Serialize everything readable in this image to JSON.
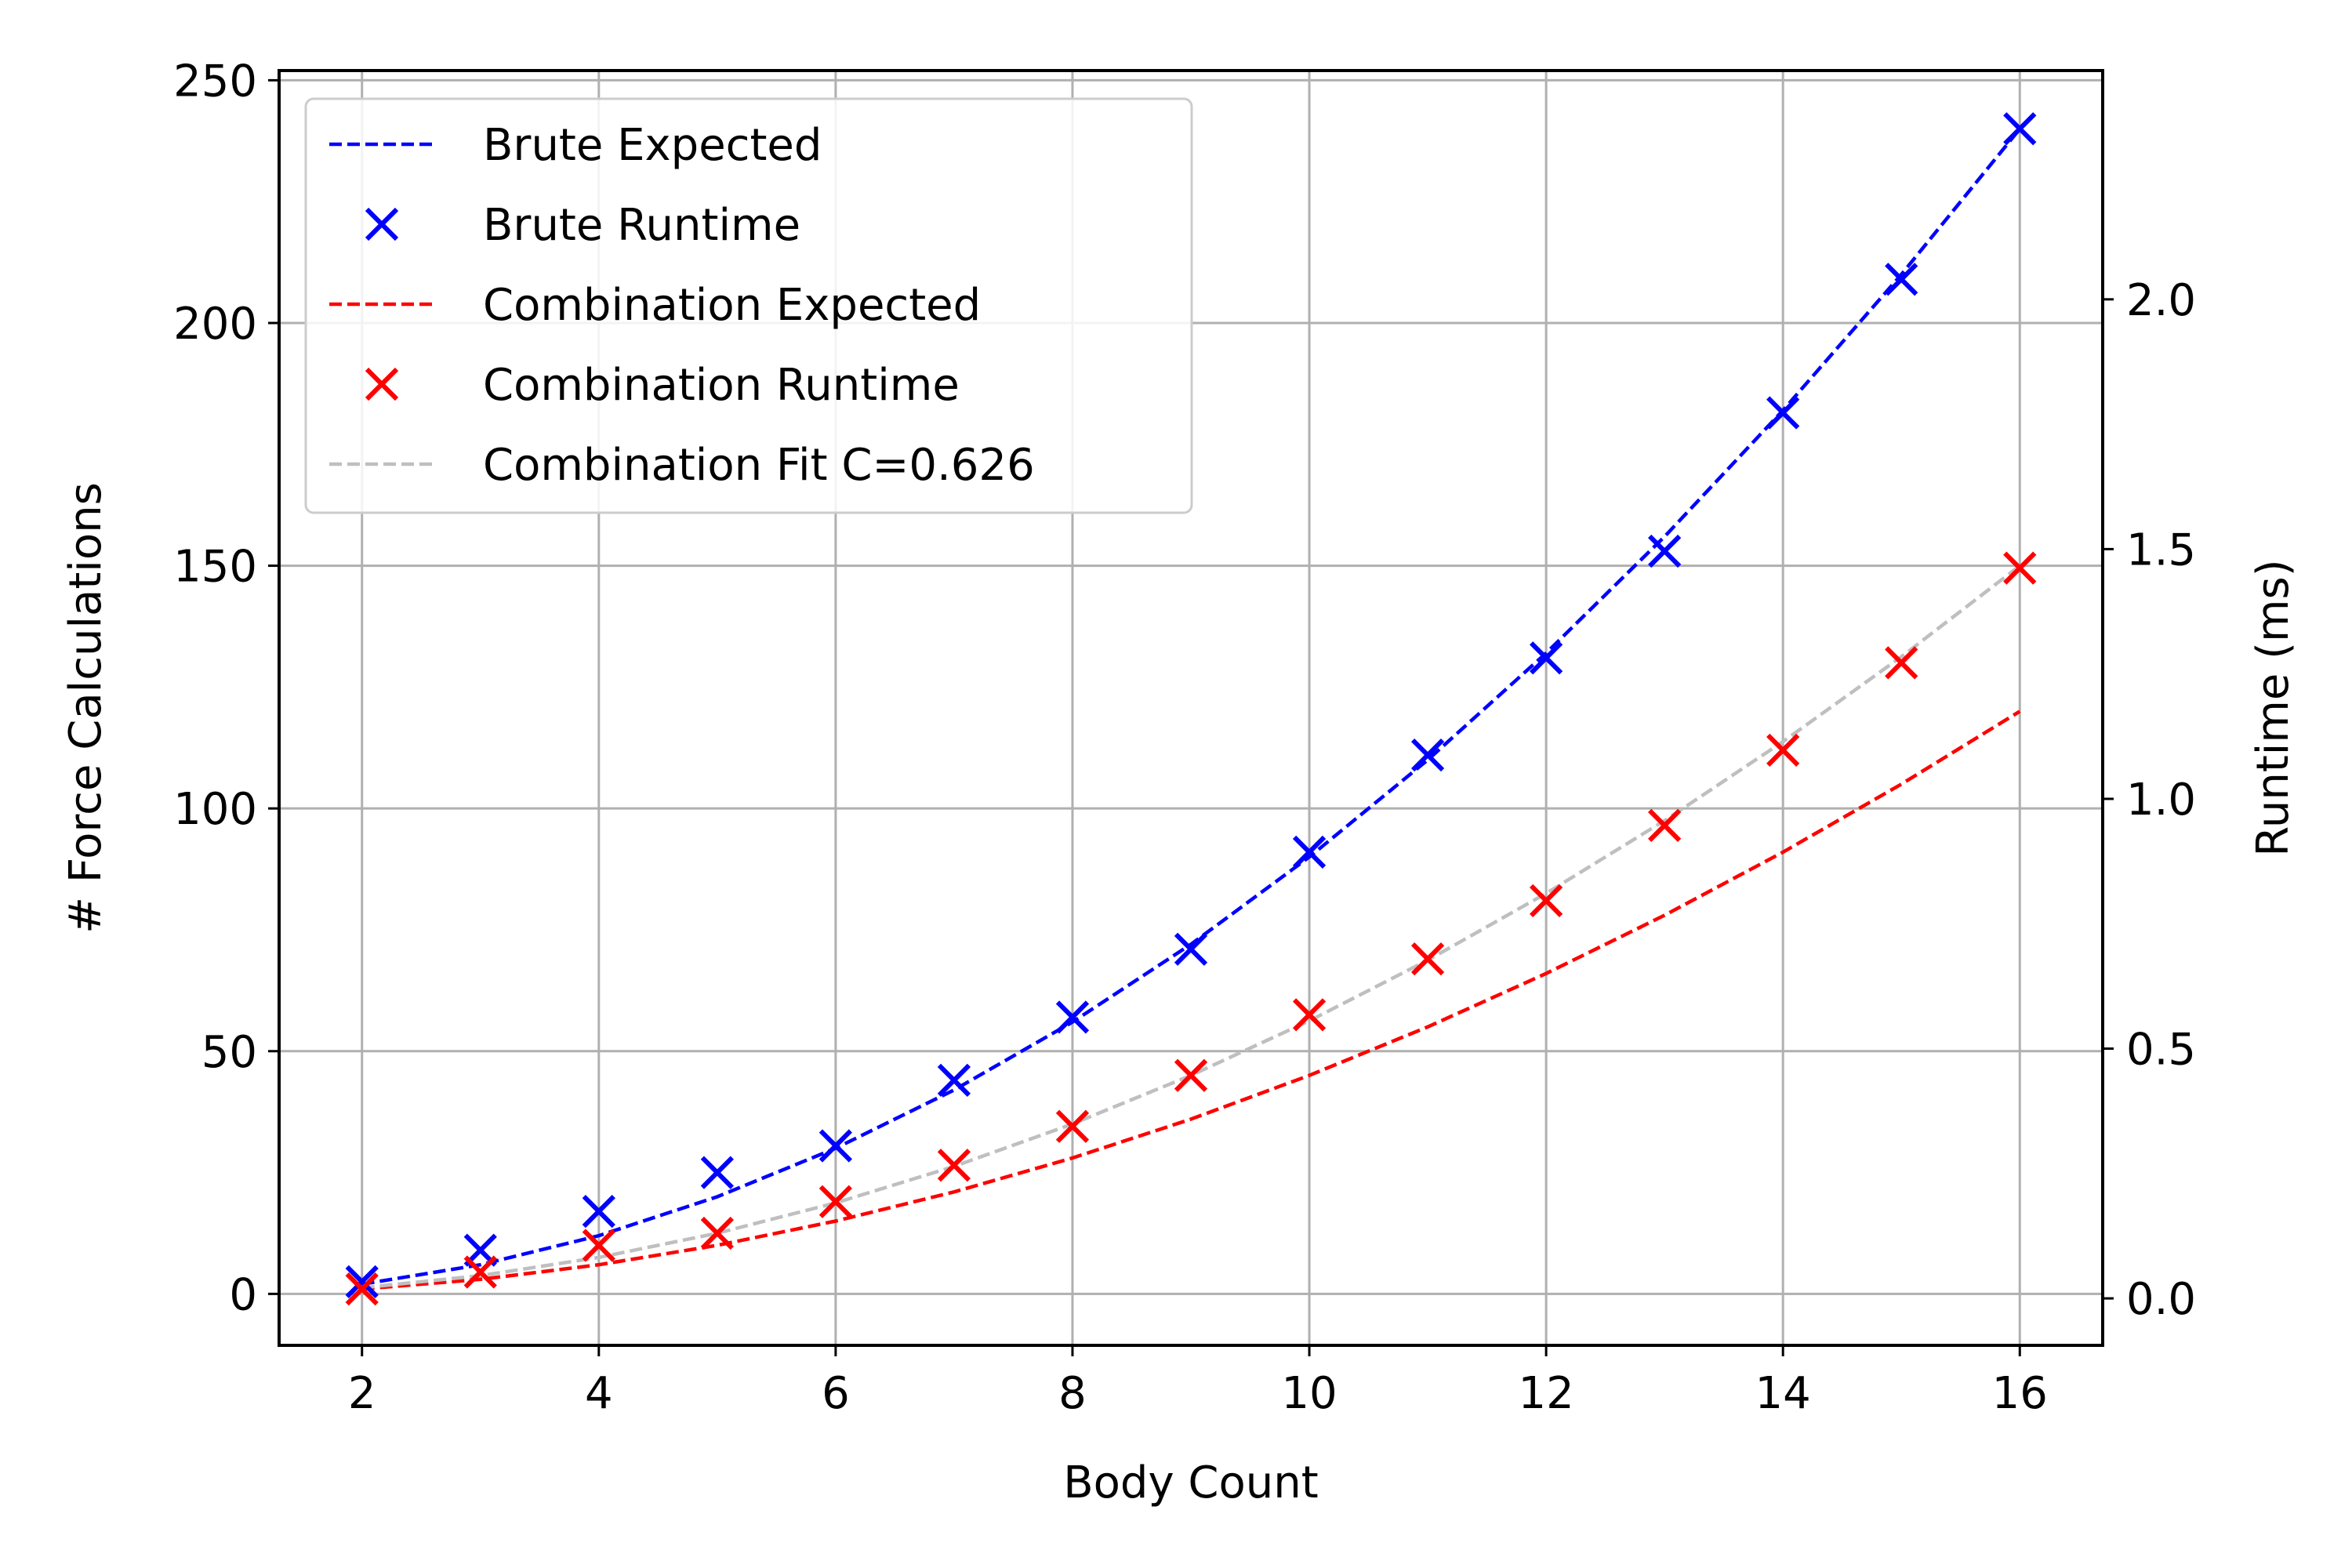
{
  "chart_data": {
    "type": "line",
    "xlabel": "Body Count",
    "ylabel": "# Force Calculations",
    "y2label": "Runtime (ms)",
    "xlim": [
      1.3,
      16.7
    ],
    "ylim": [
      -10.6,
      252.0
    ],
    "y2lim": [
      -0.094,
      2.458
    ],
    "x_ticks": [
      2,
      4,
      6,
      8,
      10,
      12,
      14,
      16
    ],
    "y_ticks": [
      0,
      50,
      100,
      150,
      200,
      250
    ],
    "y2_ticks": [
      0.0,
      0.5,
      1.0,
      1.5,
      2.0
    ],
    "y2_tick_labels": [
      "0.0",
      "0.5",
      "1.0",
      "1.5",
      "2.0"
    ],
    "grid": true,
    "legend_position": "top-left",
    "series": [
      {
        "name": "Brute Expected",
        "kind": "line",
        "style": "dashed",
        "color": "#0000ff",
        "axis": "left",
        "x": [
          2,
          3,
          4,
          5,
          6,
          7,
          8,
          9,
          10,
          11,
          12,
          13,
          14,
          15,
          16
        ],
        "y": [
          2,
          6,
          12,
          20,
          30,
          42,
          56,
          72,
          90,
          110,
          132,
          156,
          182,
          210,
          240
        ]
      },
      {
        "name": "Brute Runtime",
        "kind": "scatter",
        "marker": "x",
        "color": "#0000ff",
        "axis": "left",
        "x": [
          2,
          3,
          4,
          5,
          6,
          7,
          8,
          9,
          10,
          11,
          12,
          13,
          14,
          15,
          16
        ],
        "y": [
          2.5,
          9,
          17,
          25,
          30.5,
          44,
          57,
          71,
          91,
          111,
          131,
          153,
          181.5,
          209,
          240
        ]
      },
      {
        "name": "Combination Expected",
        "kind": "line",
        "style": "dashed",
        "color": "#ff0000",
        "axis": "left",
        "x": [
          2,
          3,
          4,
          5,
          6,
          7,
          8,
          9,
          10,
          11,
          12,
          13,
          14,
          15,
          16
        ],
        "y": [
          1,
          3,
          6,
          10,
          15,
          21,
          28,
          36,
          45,
          55,
          66,
          78,
          91,
          105,
          120
        ]
      },
      {
        "name": "Combination Runtime",
        "kind": "scatter",
        "marker": "x",
        "color": "#ff0000",
        "axis": "left",
        "x": [
          2,
          3,
          4,
          5,
          6,
          7,
          8,
          9,
          10,
          11,
          12,
          13,
          14,
          15,
          16
        ],
        "y": [
          1,
          4.5,
          10,
          12.5,
          19,
          26.5,
          34.5,
          45,
          57.5,
          69,
          81,
          96.5,
          112,
          130,
          149.5
        ]
      },
      {
        "name": "Combination Fit C=0.626",
        "kind": "line",
        "style": "dashed",
        "color": "#bfbfbf",
        "axis": "left",
        "x": [
          2,
          3,
          4,
          5,
          6,
          7,
          8,
          9,
          10,
          11,
          12,
          13,
          14,
          15,
          16
        ],
        "y": [
          1.25,
          3.75,
          7.5,
          12.5,
          18.75,
          26.25,
          35,
          45,
          56.25,
          68.75,
          82.5,
          97.5,
          113.75,
          131.25,
          150
        ]
      }
    ]
  }
}
